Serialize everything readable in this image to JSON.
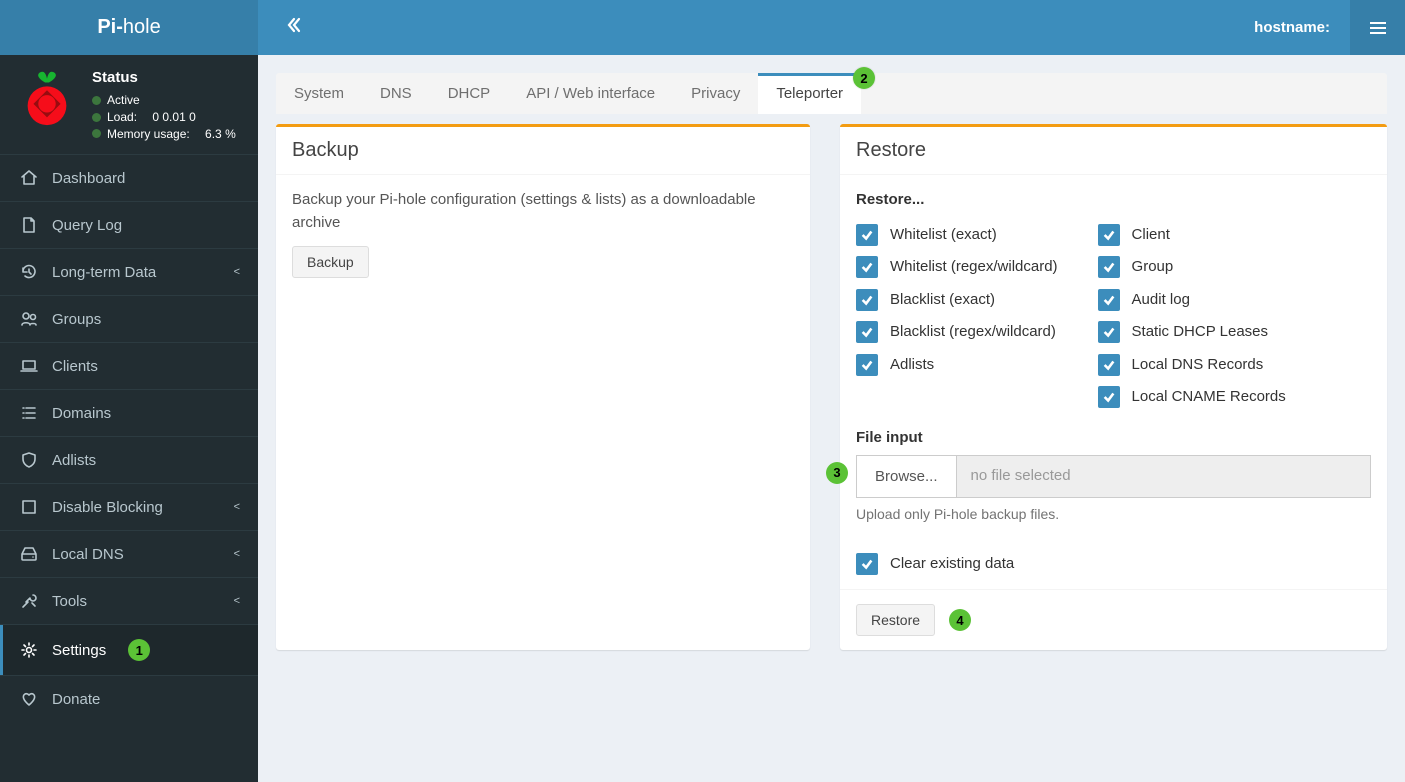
{
  "colors": {
    "primary": "#3c8dbc",
    "primary_dark": "#367fa9",
    "sidebar_bg": "#222d32",
    "page_bg": "#ecf0f5",
    "accent_orange": "#f39c12",
    "marker_green": "#5bc236",
    "status_green": "#3c763d"
  },
  "brand": {
    "prefix": "Pi-",
    "suffix": "hole"
  },
  "header": {
    "hostname_label": "hostname:"
  },
  "status": {
    "title": "Status",
    "active": "Active",
    "load_label": "Load:",
    "load_value": "0  0.01  0",
    "mem_label": "Memory usage:",
    "mem_value": "6.3 %"
  },
  "sidebar": {
    "items": [
      {
        "id": "dashboard",
        "label": "Dashboard",
        "icon": "home",
        "chevron": false,
        "active": false
      },
      {
        "id": "querylog",
        "label": "Query Log",
        "icon": "file",
        "chevron": false,
        "active": false
      },
      {
        "id": "longterm",
        "label": "Long-term Data",
        "icon": "history",
        "chevron": true,
        "active": false
      },
      {
        "id": "groups",
        "label": "Groups",
        "icon": "users",
        "chevron": false,
        "active": false
      },
      {
        "id": "clients",
        "label": "Clients",
        "icon": "laptop",
        "chevron": false,
        "active": false
      },
      {
        "id": "domains",
        "label": "Domains",
        "icon": "list",
        "chevron": false,
        "active": false
      },
      {
        "id": "adlists",
        "label": "Adlists",
        "icon": "shield",
        "chevron": false,
        "active": false
      },
      {
        "id": "disable",
        "label": "Disable Blocking",
        "icon": "stop",
        "chevron": true,
        "active": false
      },
      {
        "id": "localdns",
        "label": "Local DNS",
        "icon": "drive",
        "chevron": true,
        "active": false
      },
      {
        "id": "tools",
        "label": "Tools",
        "icon": "tools",
        "chevron": true,
        "active": false
      },
      {
        "id": "settings",
        "label": "Settings",
        "icon": "gear",
        "chevron": false,
        "active": true
      },
      {
        "id": "donate",
        "label": "Donate",
        "icon": "heart",
        "chevron": false,
        "active": false
      }
    ]
  },
  "markers": {
    "m1": "1",
    "m2": "2",
    "m3": "3",
    "m4": "4"
  },
  "tabs": [
    {
      "id": "system",
      "label": "System",
      "active": false
    },
    {
      "id": "dns",
      "label": "DNS",
      "active": false
    },
    {
      "id": "dhcp",
      "label": "DHCP",
      "active": false
    },
    {
      "id": "api",
      "label": "API / Web interface",
      "active": false
    },
    {
      "id": "privacy",
      "label": "Privacy",
      "active": false
    },
    {
      "id": "teleporter",
      "label": "Teleporter",
      "active": true
    }
  ],
  "backup": {
    "title": "Backup",
    "desc": "Backup your Pi-hole configuration (settings & lists) as a downloadable archive",
    "button": "Backup"
  },
  "restore": {
    "title": "Restore",
    "heading": "Restore...",
    "col1": [
      {
        "label": "Whitelist (exact)",
        "checked": true
      },
      {
        "label": "Whitelist (regex/wildcard)",
        "checked": true
      },
      {
        "label": "Blacklist (exact)",
        "checked": true
      },
      {
        "label": "Blacklist (regex/wildcard)",
        "checked": true
      },
      {
        "label": "Adlists",
        "checked": true
      }
    ],
    "col2": [
      {
        "label": "Client",
        "checked": true
      },
      {
        "label": "Group",
        "checked": true
      },
      {
        "label": "Audit log",
        "checked": true
      },
      {
        "label": "Static DHCP Leases",
        "checked": true
      },
      {
        "label": "Local DNS Records",
        "checked": true
      },
      {
        "label": "Local CNAME Records",
        "checked": true
      }
    ],
    "file_label": "File input",
    "browse": "Browse...",
    "no_file": "no file selected",
    "hint": "Upload only Pi-hole backup files.",
    "clear_label": "Clear existing data",
    "restore_btn": "Restore"
  }
}
